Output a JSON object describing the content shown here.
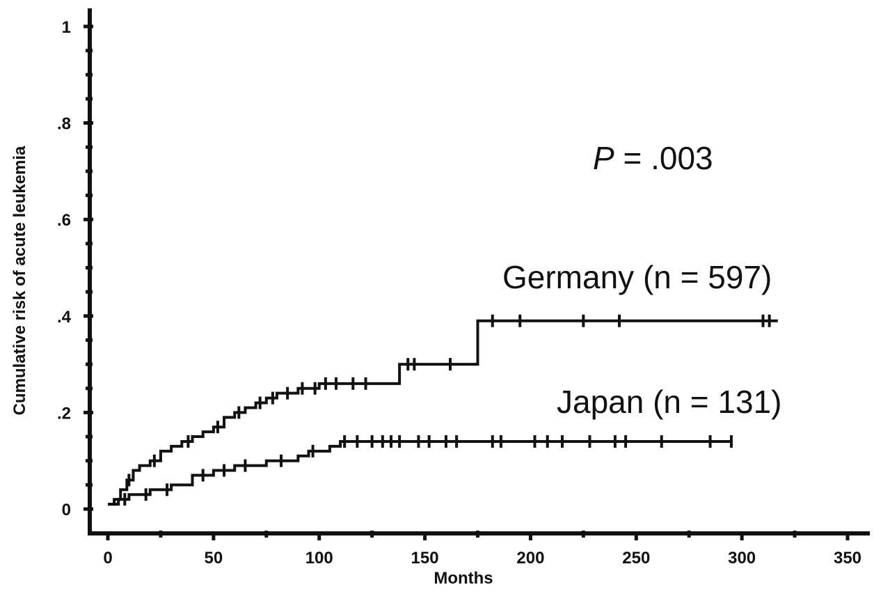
{
  "chart_data": {
    "type": "line",
    "step": true,
    "title": "",
    "xlabel": "Months",
    "ylabel": "Cumulative risk of acute leukemia",
    "xlim": [
      0,
      350
    ],
    "ylim": [
      0,
      1
    ],
    "x_ticks": [
      "0",
      "50",
      "100",
      "150",
      "200",
      "250",
      "300",
      "350"
    ],
    "y_ticks": [
      "0",
      ".2",
      ".4",
      ".6",
      ".8",
      "1"
    ],
    "grid": false,
    "annotations": {
      "p_prefix": "P",
      "p_suffix": " = .003"
    },
    "series": [
      {
        "name": "Germany (n = 597)",
        "points": [
          [
            0,
            0.01
          ],
          [
            3,
            0.02
          ],
          [
            6,
            0.04
          ],
          [
            9,
            0.06
          ],
          [
            12,
            0.08
          ],
          [
            15,
            0.09
          ],
          [
            20,
            0.1
          ],
          [
            25,
            0.12
          ],
          [
            30,
            0.13
          ],
          [
            35,
            0.14
          ],
          [
            40,
            0.15
          ],
          [
            45,
            0.16
          ],
          [
            50,
            0.17
          ],
          [
            55,
            0.19
          ],
          [
            60,
            0.2
          ],
          [
            65,
            0.21
          ],
          [
            70,
            0.22
          ],
          [
            75,
            0.23
          ],
          [
            80,
            0.24
          ],
          [
            90,
            0.25
          ],
          [
            100,
            0.26
          ],
          [
            138,
            0.26
          ],
          [
            138,
            0.3
          ],
          [
            175,
            0.3
          ],
          [
            175,
            0.39
          ],
          [
            317,
            0.39
          ]
        ],
        "censored_x": [
          10,
          22,
          38,
          52,
          62,
          72,
          78,
          85,
          92,
          98,
          103,
          108,
          116,
          122,
          142,
          145,
          162,
          182,
          195,
          225,
          242,
          310,
          313
        ]
      },
      {
        "name": "Japan (n = 131)",
        "points": [
          [
            0,
            0.01
          ],
          [
            5,
            0.02
          ],
          [
            10,
            0.03
          ],
          [
            20,
            0.04
          ],
          [
            30,
            0.05
          ],
          [
            40,
            0.07
          ],
          [
            50,
            0.08
          ],
          [
            60,
            0.09
          ],
          [
            75,
            0.1
          ],
          [
            90,
            0.11
          ],
          [
            95,
            0.12
          ],
          [
            105,
            0.13
          ],
          [
            110,
            0.14
          ],
          [
            295,
            0.14
          ]
        ],
        "censored_x": [
          8,
          18,
          28,
          45,
          55,
          65,
          82,
          97,
          112,
          118,
          125,
          130,
          134,
          138,
          147,
          152,
          160,
          165,
          182,
          186,
          202,
          208,
          215,
          228,
          240,
          245,
          262,
          285,
          295
        ]
      }
    ]
  }
}
